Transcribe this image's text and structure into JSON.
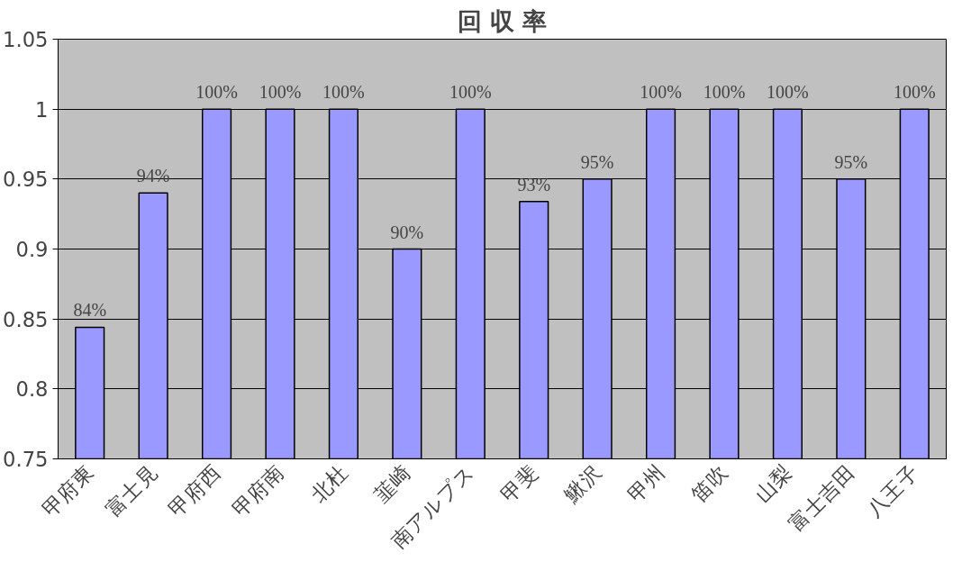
{
  "chart_data": {
    "type": "bar",
    "title": "回 収 率",
    "categories": [
      "甲府東",
      "富士見",
      "甲府西",
      "甲府南",
      "北杜",
      "韮崎",
      "南アルプス",
      "甲斐",
      "鰍沢",
      "甲州",
      "笛吹",
      "山梨",
      "富士吉田",
      "八王子"
    ],
    "values": [
      0.844,
      0.94,
      1,
      1,
      1,
      0.9,
      1,
      0.934,
      0.95,
      1,
      1,
      1,
      0.95,
      1
    ],
    "value_labels": [
      "84%",
      "94%",
      "100%",
      "100%",
      "100%",
      "90%",
      "100%",
      "93%",
      "95%",
      "100%",
      "100%",
      "100%",
      "95%",
      "100%"
    ],
    "color": "#9999ff",
    "ylim": [
      0.75,
      1.05
    ],
    "yticks": [
      0.75,
      0.8,
      0.85,
      0.9,
      0.95,
      1,
      1.05
    ],
    "grid": "y"
  }
}
